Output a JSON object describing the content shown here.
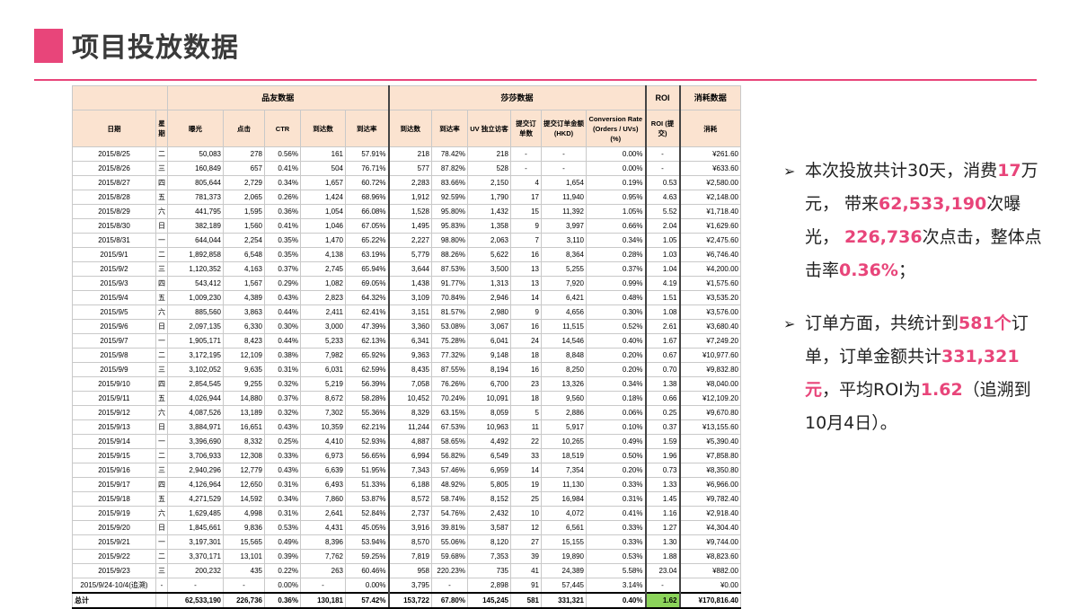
{
  "title": "项目投放数据",
  "colors": {
    "accent": "#e8457a",
    "header_bg": "#fbe3d0",
    "roi_total_bg": "#8bd35a"
  },
  "table": {
    "groups": {
      "g1": "品友数据",
      "g2": "莎莎数据",
      "g3": "ROI",
      "g4": "消耗数据"
    },
    "columns": [
      "日期",
      "星期",
      "曝光",
      "点击",
      "CTR",
      "到达数",
      "到达率",
      "到达数",
      "到达率",
      "UV 独立访客",
      "提交订单数",
      "提交订单金额 (HKD)",
      "Conversion Rate (Orders / UVs) (%)",
      "ROI (提交)",
      "消耗"
    ],
    "rows": [
      [
        "2015/8/25",
        "二",
        "50,083",
        "278",
        "0.56%",
        "161",
        "57.91%",
        "218",
        "78.42%",
        "218",
        "-",
        "-",
        "0.00%",
        "-",
        "¥261.60"
      ],
      [
        "2015/8/26",
        "三",
        "160,849",
        "657",
        "0.41%",
        "504",
        "76.71%",
        "577",
        "87.82%",
        "528",
        "-",
        "-",
        "0.00%",
        "-",
        "¥633.60"
      ],
      [
        "2015/8/27",
        "四",
        "805,644",
        "2,729",
        "0.34%",
        "1,657",
        "60.72%",
        "2,283",
        "83.66%",
        "2,150",
        "4",
        "1,654",
        "0.19%",
        "0.53",
        "¥2,580.00"
      ],
      [
        "2015/8/28",
        "五",
        "781,373",
        "2,065",
        "0.26%",
        "1,424",
        "68.96%",
        "1,912",
        "92.59%",
        "1,790",
        "17",
        "11,940",
        "0.95%",
        "4.63",
        "¥2,148.00"
      ],
      [
        "2015/8/29",
        "六",
        "441,795",
        "1,595",
        "0.36%",
        "1,054",
        "66.08%",
        "1,528",
        "95.80%",
        "1,432",
        "15",
        "11,392",
        "1.05%",
        "5.52",
        "¥1,718.40"
      ],
      [
        "2015/8/30",
        "日",
        "382,189",
        "1,560",
        "0.41%",
        "1,046",
        "67.05%",
        "1,495",
        "95.83%",
        "1,358",
        "9",
        "3,997",
        "0.66%",
        "2.04",
        "¥1,629.60"
      ],
      [
        "2015/8/31",
        "一",
        "644,044",
        "2,254",
        "0.35%",
        "1,470",
        "65.22%",
        "2,227",
        "98.80%",
        "2,063",
        "7",
        "3,110",
        "0.34%",
        "1.05",
        "¥2,475.60"
      ],
      [
        "2015/9/1",
        "二",
        "1,892,858",
        "6,548",
        "0.35%",
        "4,138",
        "63.19%",
        "5,779",
        "88.26%",
        "5,622",
        "16",
        "8,364",
        "0.28%",
        "1.03",
        "¥6,746.40"
      ],
      [
        "2015/9/2",
        "三",
        "1,120,352",
        "4,163",
        "0.37%",
        "2,745",
        "65.94%",
        "3,644",
        "87.53%",
        "3,500",
        "13",
        "5,255",
        "0.37%",
        "1.04",
        "¥4,200.00"
      ],
      [
        "2015/9/3",
        "四",
        "543,412",
        "1,567",
        "0.29%",
        "1,082",
        "69.05%",
        "1,438",
        "91.77%",
        "1,313",
        "13",
        "7,920",
        "0.99%",
        "4.19",
        "¥1,575.60"
      ],
      [
        "2015/9/4",
        "五",
        "1,009,230",
        "4,389",
        "0.43%",
        "2,823",
        "64.32%",
        "3,109",
        "70.84%",
        "2,946",
        "14",
        "6,421",
        "0.48%",
        "1.51",
        "¥3,535.20"
      ],
      [
        "2015/9/5",
        "六",
        "885,560",
        "3,863",
        "0.44%",
        "2,411",
        "62.41%",
        "3,151",
        "81.57%",
        "2,980",
        "9",
        "4,656",
        "0.30%",
        "1.08",
        "¥3,576.00"
      ],
      [
        "2015/9/6",
        "日",
        "2,097,135",
        "6,330",
        "0.30%",
        "3,000",
        "47.39%",
        "3,360",
        "53.08%",
        "3,067",
        "16",
        "11,515",
        "0.52%",
        "2.61",
        "¥3,680.40"
      ],
      [
        "2015/9/7",
        "一",
        "1,905,171",
        "8,423",
        "0.44%",
        "5,233",
        "62.13%",
        "6,341",
        "75.28%",
        "6,041",
        "24",
        "14,546",
        "0.40%",
        "1.67",
        "¥7,249.20"
      ],
      [
        "2015/9/8",
        "二",
        "3,172,195",
        "12,109",
        "0.38%",
        "7,982",
        "65.92%",
        "9,363",
        "77.32%",
        "9,148",
        "18",
        "8,848",
        "0.20%",
        "0.67",
        "¥10,977.60"
      ],
      [
        "2015/9/9",
        "三",
        "3,102,052",
        "9,635",
        "0.31%",
        "6,031",
        "62.59%",
        "8,435",
        "87.55%",
        "8,194",
        "16",
        "8,250",
        "0.20%",
        "0.70",
        "¥9,832.80"
      ],
      [
        "2015/9/10",
        "四",
        "2,854,545",
        "9,255",
        "0.32%",
        "5,219",
        "56.39%",
        "7,058",
        "76.26%",
        "6,700",
        "23",
        "13,326",
        "0.34%",
        "1.38",
        "¥8,040.00"
      ],
      [
        "2015/9/11",
        "五",
        "4,026,944",
        "14,880",
        "0.37%",
        "8,672",
        "58.28%",
        "10,452",
        "70.24%",
        "10,091",
        "18",
        "9,560",
        "0.18%",
        "0.66",
        "¥12,109.20"
      ],
      [
        "2015/9/12",
        "六",
        "4,087,526",
        "13,189",
        "0.32%",
        "7,302",
        "55.36%",
        "8,329",
        "63.15%",
        "8,059",
        "5",
        "2,886",
        "0.06%",
        "0.25",
        "¥9,670.80"
      ],
      [
        "2015/9/13",
        "日",
        "3,884,971",
        "16,651",
        "0.43%",
        "10,359",
        "62.21%",
        "11,244",
        "67.53%",
        "10,963",
        "11",
        "5,917",
        "0.10%",
        "0.37",
        "¥13,155.60"
      ],
      [
        "2015/9/14",
        "一",
        "3,396,690",
        "8,332",
        "0.25%",
        "4,410",
        "52.93%",
        "4,887",
        "58.65%",
        "4,492",
        "22",
        "10,265",
        "0.49%",
        "1.59",
        "¥5,390.40"
      ],
      [
        "2015/9/15",
        "二",
        "3,706,933",
        "12,308",
        "0.33%",
        "6,973",
        "56.65%",
        "6,994",
        "56.82%",
        "6,549",
        "33",
        "18,519",
        "0.50%",
        "1.96",
        "¥7,858.80"
      ],
      [
        "2015/9/16",
        "三",
        "2,940,296",
        "12,779",
        "0.43%",
        "6,639",
        "51.95%",
        "7,343",
        "57.46%",
        "6,959",
        "14",
        "7,354",
        "0.20%",
        "0.73",
        "¥8,350.80"
      ],
      [
        "2015/9/17",
        "四",
        "4,126,964",
        "12,650",
        "0.31%",
        "6,493",
        "51.33%",
        "6,188",
        "48.92%",
        "5,805",
        "19",
        "11,130",
        "0.33%",
        "1.33",
        "¥6,966.00"
      ],
      [
        "2015/9/18",
        "五",
        "4,271,529",
        "14,592",
        "0.34%",
        "7,860",
        "53.87%",
        "8,572",
        "58.74%",
        "8,152",
        "25",
        "16,984",
        "0.31%",
        "1.45",
        "¥9,782.40"
      ],
      [
        "2015/9/19",
        "六",
        "1,629,485",
        "4,998",
        "0.31%",
        "2,641",
        "52.84%",
        "2,737",
        "54.76%",
        "2,432",
        "10",
        "4,072",
        "0.41%",
        "1.16",
        "¥2,918.40"
      ],
      [
        "2015/9/20",
        "日",
        "1,845,661",
        "9,836",
        "0.53%",
        "4,431",
        "45.05%",
        "3,916",
        "39.81%",
        "3,587",
        "12",
        "6,561",
        "0.33%",
        "1.27",
        "¥4,304.40"
      ],
      [
        "2015/9/21",
        "一",
        "3,197,301",
        "15,565",
        "0.49%",
        "8,396",
        "53.94%",
        "8,570",
        "55.06%",
        "8,120",
        "27",
        "15,155",
        "0.33%",
        "1.30",
        "¥9,744.00"
      ],
      [
        "2015/9/22",
        "二",
        "3,370,171",
        "13,101",
        "0.39%",
        "7,762",
        "59.25%",
        "7,819",
        "59.68%",
        "7,353",
        "39",
        "19,890",
        "0.53%",
        "1.88",
        "¥8,823.60"
      ],
      [
        "2015/9/23",
        "三",
        "200,232",
        "435",
        "0.22%",
        "263",
        "60.46%",
        "958",
        "220.23%",
        "735",
        "41",
        "24,389",
        "5.58%",
        "23.04",
        "¥882.00"
      ],
      [
        "2015/9/24-10/4(追溯)",
        "-",
        "-",
        "-",
        "0.00%",
        "-",
        "0.00%",
        "3,795",
        "-",
        "2,898",
        "91",
        "57,445",
        "3.14%",
        "-",
        "¥0.00"
      ]
    ],
    "total": [
      "总计",
      "",
      "62,533,190",
      "226,736",
      "0.36%",
      "130,181",
      "57.42%",
      "153,722",
      "67.80%",
      "145,245",
      "581",
      "331,321",
      "0.40%",
      "1.62",
      "¥170,816.40"
    ]
  },
  "summary": {
    "b1": {
      "t1": "本次投放共计30天，消费",
      "h1": "17",
      "t2": "万元，  带来",
      "h2": "62,533,190",
      "t3": "次曝光，  ",
      "h3": "226,736",
      "t4": "次点击，整体点击率",
      "h4": "0.36%",
      "t5": "；"
    },
    "b2": {
      "t1": "订单方面，共统计到",
      "h1": "581个",
      "t2": "订单，订单金额共计",
      "h2": "331,321元",
      "t3": "，平均ROI为",
      "h3": "1.62",
      "t4": "（追溯到10月4日）。"
    }
  }
}
